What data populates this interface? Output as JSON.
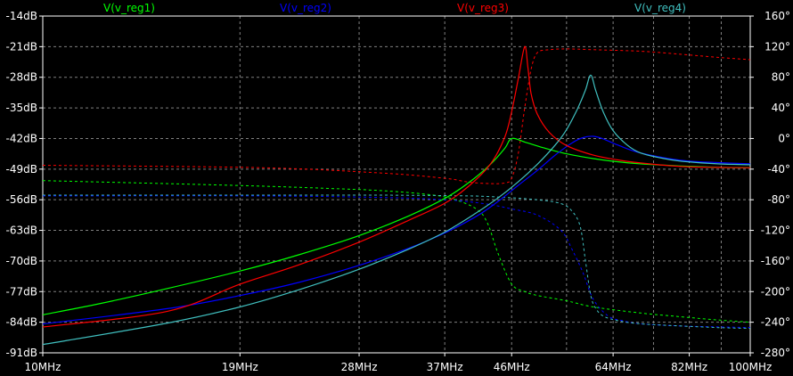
{
  "chart_data": {
    "type": "line",
    "x_scale": "log",
    "xlim": [
      10,
      100
    ],
    "x_unit": "MHz",
    "ylim_left": [
      -91,
      -14
    ],
    "ylim_right": [
      -280,
      160
    ],
    "grid": true,
    "legend_position": "top",
    "background": "#000000",
    "x_ticks": [
      "10MHz",
      "19MHz",
      "28MHz",
      "37MHz",
      "46MHz",
      "64MHz",
      "82MHz",
      "100MHz"
    ],
    "x_tick_values": [
      10,
      19,
      28,
      37,
      46,
      64,
      82,
      100
    ],
    "minor_x_values": [
      55,
      73,
      91
    ],
    "y_left_ticks": [
      "-14dB",
      "-21dB",
      "-28dB",
      "-35dB",
      "-42dB",
      "-49dB",
      "-56dB",
      "-63dB",
      "-70dB",
      "-77dB",
      "-84dB",
      "-91dB"
    ],
    "y_left_values": [
      -14,
      -21,
      -28,
      -35,
      -42,
      -49,
      -56,
      -63,
      -70,
      -77,
      -84,
      -91
    ],
    "y_right_ticks": [
      "160°",
      "120°",
      "80°",
      "40°",
      "0°",
      "-40°",
      "-80°",
      "-120°",
      "-160°",
      "-200°",
      "-240°",
      "-280°"
    ],
    "y_right_values": [
      160,
      120,
      80,
      40,
      0,
      -40,
      -80,
      -120,
      -160,
      -200,
      -240,
      -280
    ],
    "series": [
      {
        "name": "V(v_reg1)",
        "color": "#00ff00",
        "magnitude": {
          "x": [
            10,
            12,
            15,
            19,
            23,
            28,
            33,
            37,
            40,
            43,
            45,
            46,
            48,
            51,
            55,
            60,
            64,
            70,
            80,
            90,
            100
          ],
          "y": [
            -82.3,
            -79.8,
            -76.3,
            -72.3,
            -68.6,
            -64.2,
            -59.6,
            -55.7,
            -52.1,
            -47.8,
            -44.2,
            -42.0,
            -42.8,
            -44.1,
            -45.5,
            -46.6,
            -47.2,
            -47.8,
            -48.3,
            -48.6,
            -48.7
          ]
        },
        "phase": {
          "x": [
            10,
            15,
            20,
            25,
            30,
            35,
            38,
            41,
            42.5,
            44,
            46,
            48,
            50,
            55,
            60,
            70,
            80,
            90,
            100
          ],
          "y": [
            -55,
            -59,
            -62,
            -65,
            -68,
            -73,
            -79,
            -92,
            -110,
            -150,
            -190,
            -200,
            -205,
            -212,
            -220,
            -228,
            -233,
            -237,
            -240
          ]
        }
      },
      {
        "name": "V(v_reg2)",
        "color": "#0000ff",
        "magnitude": {
          "x": [
            10,
            15,
            19,
            23,
            28,
            33,
            37,
            41,
            44,
            47,
            50,
            53,
            56,
            58,
            60,
            62,
            65,
            70,
            80,
            90,
            100
          ],
          "y": [
            -84.4,
            -80.9,
            -77.9,
            -74.9,
            -71.0,
            -67.0,
            -63.6,
            -59.8,
            -56.4,
            -52.7,
            -49.3,
            -45.8,
            -43.0,
            -41.8,
            -41.5,
            -42.1,
            -43.5,
            -45.3,
            -47.0,
            -47.5,
            -47.8
          ]
        },
        "phase": {
          "x": [
            10,
            20,
            30,
            37,
            42,
            46,
            50,
            54,
            56,
            58,
            60,
            63,
            66,
            70,
            80,
            90,
            100
          ],
          "y": [
            -75,
            -75,
            -77,
            -80,
            -85,
            -92,
            -100,
            -120,
            -145,
            -175,
            -210,
            -232,
            -238,
            -242,
            -245,
            -246,
            -247
          ]
        }
      },
      {
        "name": "V(v_reg3)",
        "color": "#ff0000",
        "magnitude": {
          "x": [
            10,
            15,
            19,
            23,
            28,
            33,
            37,
            40,
            43,
            45,
            46,
            47,
            48,
            48.5,
            49,
            50,
            52,
            55,
            60,
            65,
            70,
            80,
            90,
            100
          ],
          "y": [
            -85.1,
            -81.5,
            -75.3,
            -70.9,
            -65.7,
            -60.6,
            -56.8,
            -52.9,
            -47.7,
            -41.6,
            -35.9,
            -28.4,
            -21.0,
            -25.8,
            -31.7,
            -36.4,
            -40.6,
            -43.6,
            -45.8,
            -46.9,
            -47.6,
            -48.4,
            -48.6,
            -48.7
          ]
        },
        "phase": {
          "x": [
            10,
            20,
            30,
            37,
            40,
            43,
            45,
            46,
            47,
            48,
            49,
            50,
            52,
            55,
            60,
            70,
            80,
            90,
            100
          ],
          "y": [
            -35,
            -38,
            -45,
            -52,
            -57,
            -59,
            -58,
            -52,
            -20,
            40,
            90,
            112,
            116,
            117,
            116,
            114,
            110,
            106,
            103
          ]
        }
      },
      {
        "name": "V(v_reg4)",
        "color": "#40c0c0",
        "magnitude": {
          "x": [
            10,
            15,
            19,
            23,
            28,
            33,
            37,
            41,
            44,
            47,
            50,
            53,
            55,
            57,
            58.5,
            59.5,
            60.5,
            62,
            64,
            67,
            70,
            75,
            80,
            90,
            100
          ],
          "y": [
            -89.1,
            -84.2,
            -80.5,
            -76.6,
            -71.9,
            -67.2,
            -63.4,
            -59.0,
            -55.6,
            -51.9,
            -47.9,
            -43.5,
            -40.0,
            -35.2,
            -30.9,
            -27.5,
            -31.1,
            -36.0,
            -40.2,
            -43.5,
            -45.3,
            -46.5,
            -47.2,
            -47.8,
            -48.0
          ]
        },
        "phase": {
          "x": [
            10,
            20,
            30,
            40,
            45,
            50,
            54,
            56,
            57.5,
            58.5,
            59.5,
            60.5,
            62,
            65,
            70,
            80,
            90,
            100
          ],
          "y": [
            -74,
            -74,
            -74,
            -75,
            -77,
            -80,
            -85,
            -95,
            -115,
            -160,
            -205,
            -222,
            -232,
            -238,
            -242,
            -245,
            -247,
            -248
          ]
        }
      }
    ]
  }
}
